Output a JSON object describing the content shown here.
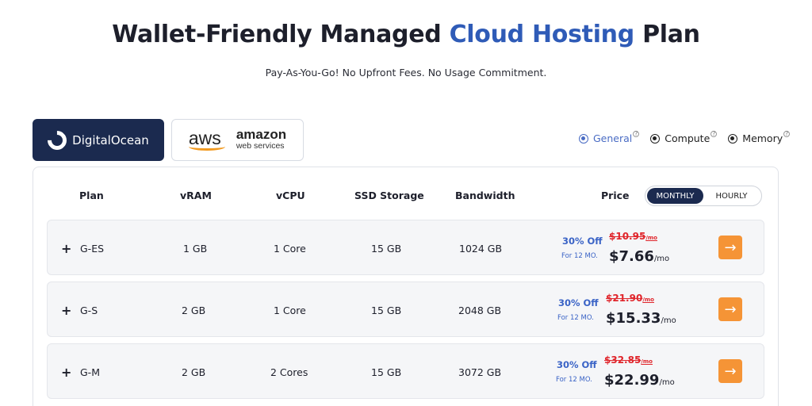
{
  "header": {
    "title_part1": "Wallet-Friendly ",
    "title_part2": "Managed ",
    "title_accent": "Cloud Hosting",
    "title_part3": " Plan",
    "subtitle": "Pay-As-You-Go! No Upfront Fees. No Usage Commitment."
  },
  "providers": {
    "digitalocean": {
      "label": "DigitalOcean",
      "icon": "digitalocean-logo-icon"
    },
    "aws": {
      "word": "aws",
      "brand": "amazon",
      "sub": "web services",
      "icon": "aws-logo-icon"
    }
  },
  "categories": [
    {
      "label": "General",
      "help": "?",
      "selected": true
    },
    {
      "label": "Compute",
      "help": "?",
      "selected": false
    },
    {
      "label": "Memory",
      "help": "?",
      "selected": false
    }
  ],
  "table": {
    "headers": {
      "plan": "Plan",
      "vram": "vRAM",
      "vcpu": "vCPU",
      "ssd": "SSD Storage",
      "bandwidth": "Bandwidth",
      "price": "Price"
    },
    "billing": {
      "monthly": "MONTHLY",
      "hourly": "HOURLY",
      "selected": "monthly"
    },
    "rows": [
      {
        "expand": "+",
        "plan": "G-ES",
        "vram": "1 GB",
        "vcpu": "1 Core",
        "ssd": "15 GB",
        "bandwidth": "1024 GB",
        "discount": "30% Off",
        "period": "For 12 MO.",
        "old_price": "$10.95",
        "old_unit": "/mo",
        "new_price": "$7.66",
        "new_unit": "/mo",
        "arrow": "→"
      },
      {
        "expand": "+",
        "plan": "G-S",
        "vram": "2 GB",
        "vcpu": "1 Core",
        "ssd": "15 GB",
        "bandwidth": "2048 GB",
        "discount": "30% Off",
        "period": "For 12 MO.",
        "old_price": "$21.90",
        "old_unit": "/mo",
        "new_price": "$15.33",
        "new_unit": "/mo",
        "arrow": "→"
      },
      {
        "expand": "+",
        "plan": "G-M",
        "vram": "2 GB",
        "vcpu": "2 Cores",
        "ssd": "15 GB",
        "bandwidth": "3072 GB",
        "discount": "30% Off",
        "period": "For 12 MO.",
        "old_price": "$32.85",
        "old_unit": "/mo",
        "new_price": "$22.99",
        "new_unit": "/mo",
        "arrow": "→"
      }
    ]
  },
  "colors": {
    "accent": "#2f5bb7",
    "navy": "#1b2a4f",
    "discount": "#3a63c6",
    "strike": "#e0262c",
    "cta": "#f59436"
  }
}
